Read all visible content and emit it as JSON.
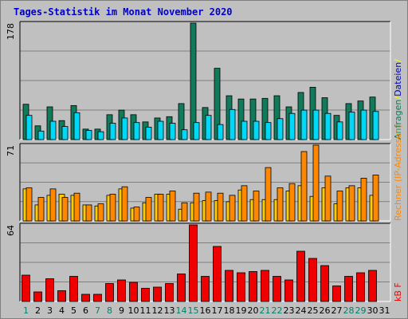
{
  "chart_data": {
    "type": "bar",
    "title": "Tages-Statistik im Monat November 2020",
    "categories": [
      "1",
      "2",
      "3",
      "4",
      "5",
      "6",
      "7",
      "8",
      "9",
      "10",
      "11",
      "12",
      "13",
      "14",
      "15",
      "16",
      "17",
      "18",
      "19",
      "20",
      "21",
      "22",
      "23",
      "24",
      "25",
      "26",
      "27",
      "28",
      "29",
      "30",
      "31"
    ],
    "weekend_days": [
      "1",
      "7",
      "8",
      "14",
      "15",
      "21",
      "22",
      "28",
      "29"
    ],
    "panels": [
      {
        "id": "top",
        "max_label": "178",
        "ylim": [
          0,
          178
        ],
        "series": [
          {
            "name": "Anfragen",
            "color": "#107a5a",
            "values": [
              54,
              21,
              50,
              29,
              52,
              16,
              16,
              38,
              45,
              38,
              27,
              33,
              35,
              55,
              178,
              49,
              109,
              67,
              62,
              62,
              63,
              67,
              50,
              72,
              80,
              64,
              37,
              55,
              59,
              65,
              0
            ]
          },
          {
            "name": "Dateien",
            "color": "#00d8f8",
            "values": [
              37,
              13,
              28,
              20,
              41,
              14,
              12,
              25,
              33,
              26,
              19,
              28,
              25,
              15,
              26,
              37,
              23,
              46,
              28,
              28,
              26,
              32,
              40,
              45,
              45,
              40,
              27,
              42,
              45,
              43,
              0
            ]
          }
        ],
        "right_label_parts": [
          {
            "text": "Anfragen",
            "color": "#107a5a"
          },
          {
            "text": "/",
            "color": "#ffff00"
          },
          {
            "text": "Dateien",
            "color": "#0000cc"
          },
          {
            "text": "/",
            "color": "#ffff00"
          }
        ]
      },
      {
        "id": "middle",
        "max_label": "71",
        "ylim": [
          0,
          71
        ],
        "series": [
          {
            "name": "Rechner",
            "color": "#ffcc00",
            "values": [
              30,
              15,
              24,
              25,
              24,
              15,
              14,
              24,
              30,
              12,
              17,
              25,
              25,
              11,
              17,
              19,
              19,
              18,
              29,
              20,
              20,
              20,
              28,
              33,
              23,
              31,
              16,
              31,
              31,
              24,
              0
            ]
          },
          {
            "name": "IP-Adressen",
            "color": "#ff8800",
            "values": [
              31,
              22,
              30,
              22,
              26,
              15,
              16,
              25,
              32,
              13,
              22,
              25,
              28,
              17,
              26,
              27,
              26,
              24,
              33,
              28,
              50,
              31,
              35,
              65,
              71,
              42,
              28,
              33,
              40,
              43,
              0
            ]
          }
        ],
        "right_label_parts": [
          {
            "text": "Rechner (IP-Adressen)",
            "color": "#ff8800"
          }
        ]
      },
      {
        "id": "bottom",
        "max_label": "64",
        "ylim": [
          0,
          64
        ],
        "series": [
          {
            "name": "kB F",
            "color": "#ee0000",
            "values": [
              22,
              8,
              19,
              9,
              21,
              6,
              6,
              15,
              18,
              16,
              11,
              12,
              15,
              23,
              64,
              21,
              46,
              26,
              24,
              25,
              26,
              21,
              18,
              42,
              36,
              30,
              13,
              21,
              24,
              26,
              0
            ]
          }
        ],
        "right_label_parts": [
          {
            "text": "kB F",
            "color": "#ee0000"
          }
        ]
      }
    ],
    "colors": {
      "weekday_label": "#000000",
      "weekend_label": "#00806a",
      "plot_background": "#c0c0c0",
      "gridline": "#808080",
      "axis_dark": "#000000",
      "axis_light": "#ffffff"
    }
  }
}
